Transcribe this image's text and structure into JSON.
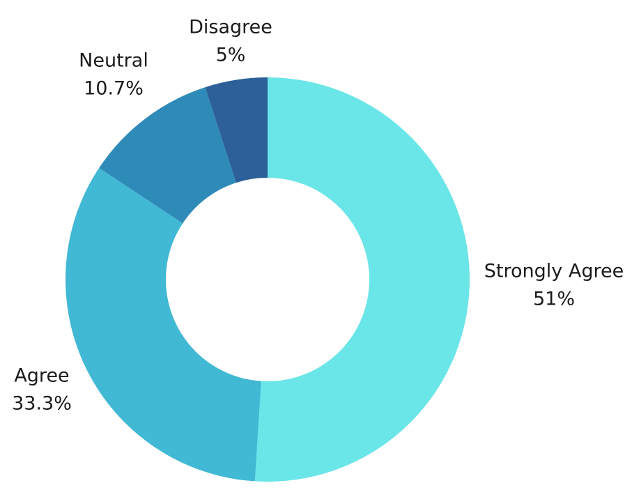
{
  "chart_data": {
    "type": "pie",
    "donut": true,
    "title": "",
    "start_angle_deg": 0,
    "direction": "clockwise",
    "slices": [
      {
        "label": "Strongly Agree",
        "value": 51,
        "value_label": "51%",
        "color": "#6ae5e8"
      },
      {
        "label": "Agree",
        "value": 33.3,
        "value_label": "33.3%",
        "color": "#41b8d4"
      },
      {
        "label": "Neutral",
        "value": 10.7,
        "value_label": "10.7%",
        "color": "#2e8bb8"
      },
      {
        "label": "Disagree",
        "value": 5,
        "value_label": "5%",
        "color": "#2d5f99"
      }
    ]
  }
}
